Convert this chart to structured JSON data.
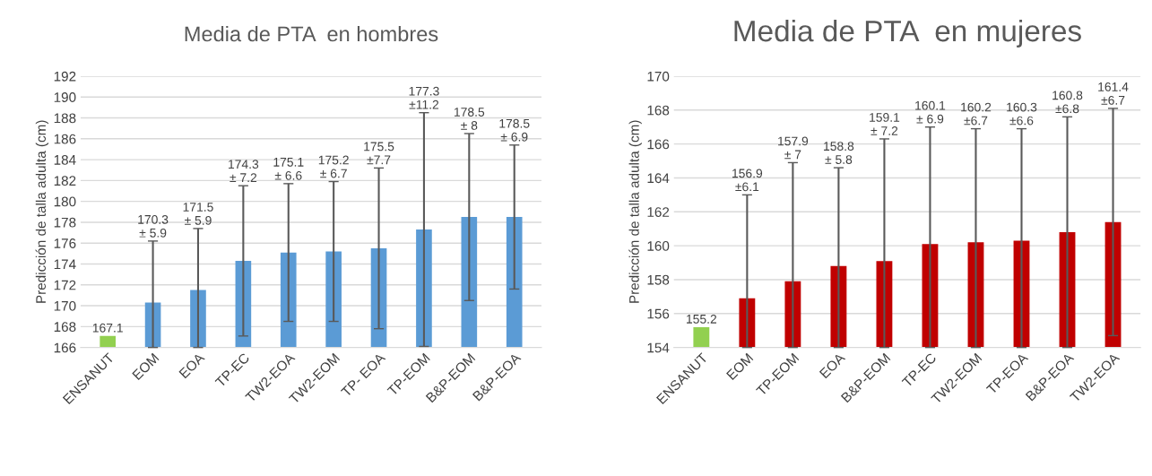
{
  "chart_data": [
    {
      "type": "bar",
      "title": "Media de PTA  en hombres",
      "ylabel": "Predicción de talla adulta (cm)",
      "categories": [
        "ENSANUT",
        "EOM",
        "EOA",
        "TP-EC",
        "TW2-EOA",
        "TW2-EOM",
        "TP- EOA",
        "TP-EOM",
        "B&P-EOM",
        "B&P-EOA"
      ],
      "values": [
        167.1,
        170.3,
        171.5,
        174.3,
        175.1,
        175.2,
        175.5,
        177.3,
        178.5,
        178.5
      ],
      "colors": [
        "#92d050",
        "#5b9bd5",
        "#5b9bd5",
        "#5b9bd5",
        "#5b9bd5",
        "#5b9bd5",
        "#5b9bd5",
        "#5b9bd5",
        "#5b9bd5",
        "#5b9bd5"
      ],
      "errors": [
        null,
        [
          166,
          176.2
        ],
        [
          166,
          177.4
        ],
        7.2,
        6.6,
        6.7,
        7.7,
        11.2,
        8,
        6.9
      ],
      "value_labels": [
        "167.1",
        null,
        null,
        null,
        null,
        null,
        null,
        null,
        null,
        null
      ],
      "annotations": [
        {
          "text": "170.3\n± 5.9",
          "x": "EOM",
          "y": 176.2
        },
        {
          "text": "171.5\n± 5.9",
          "x": "EOA",
          "y": 177.4
        },
        {
          "text": "174.3\n± 7.2",
          "x": "TP-EC",
          "y": 181.5
        },
        {
          "text": "175.1\n± 6.6",
          "x": "TW2-EOA",
          "y": 181.7
        },
        {
          "text": "175.2\n± 6.7",
          "x": "TW2-EOM",
          "y": 181.9
        },
        {
          "text": "175.5\n±7.7",
          "x": "TP- EOA",
          "y": 183.2
        },
        {
          "text": "177.3\n±11.2",
          "x": "TP-EOM",
          "y": 188.5
        },
        {
          "text": "178.5\n± 8",
          "x": "B&P-EOM",
          "y": 186.5
        },
        {
          "text": "178.5\n± 6.9",
          "x": "B&P-EOA",
          "y": 185.4
        }
      ],
      "ylim": [
        166,
        192
      ],
      "yticks": [
        166,
        168,
        170,
        172,
        174,
        176,
        178,
        180,
        182,
        184,
        186,
        188,
        190,
        192
      ],
      "grid": "y"
    },
    {
      "type": "bar",
      "title": "Media de PTA  en mujeres",
      "ylabel": "Predicción de talla adulta (cm)",
      "categories": [
        "ENSANUT",
        "EOM",
        "TP-EOM",
        "EOA",
        "B&P-EOM",
        "TP-EC",
        "TW2-EOM",
        "TP-EOA",
        "B&P-EOA",
        "TW2-EOA"
      ],
      "values": [
        155.2,
        156.9,
        157.9,
        158.8,
        159.1,
        160.1,
        160.2,
        160.3,
        160.8,
        161.4
      ],
      "colors": [
        "#92d050",
        "#c00000",
        "#c00000",
        "#c00000",
        "#c00000",
        "#c00000",
        "#c00000",
        "#c00000",
        "#c00000",
        "#c00000"
      ],
      "errors": [
        null,
        [
          154,
          163.0
        ],
        [
          154,
          164.9
        ],
        [
          154,
          164.6
        ],
        [
          154,
          166.3
        ],
        [
          154,
          167.0
        ],
        [
          154,
          166.9
        ],
        [
          154,
          166.9
        ],
        [
          154,
          167.6
        ],
        6.7
      ],
      "value_labels": [
        "155.2",
        null,
        null,
        null,
        null,
        null,
        null,
        null,
        null,
        null
      ],
      "annotations": [
        "156.9\n±6.1",
        "157.9\n± 7",
        "158.8\n± 5.8",
        "159.1\n± 7.2",
        "160.1\n± 6.9",
        "160.2\n±6.7",
        "160.3\n±6.6",
        "160.8\n±6.8",
        "161.4\n±6.7"
      ],
      "ylim": [
        154,
        170
      ],
      "yticks": [
        154,
        156,
        158,
        160,
        162,
        164,
        166,
        168,
        170
      ],
      "grid": "y"
    }
  ]
}
